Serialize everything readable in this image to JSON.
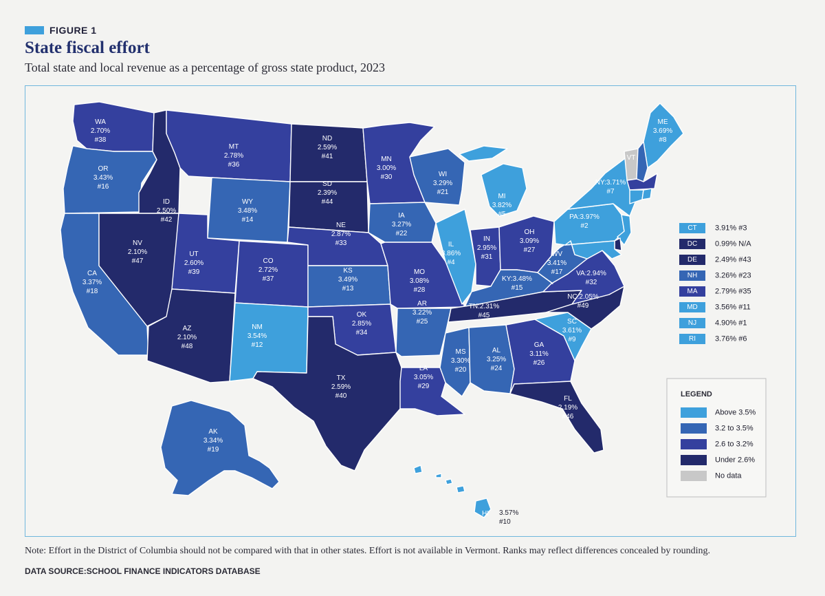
{
  "figure_label": "FIGURE 1",
  "title": "State fiscal effort",
  "subtitle": "Total state and local revenue as a percentage of gross state product, 2023",
  "note": "Note: Effort in the District of Columbia should not be compared with that in other states. Effort is not available in Vermont. Ranks may reflect differences concealed by rounding.",
  "source": "DATA SOURCE:SCHOOL FINANCE INDICATORS DATABASE",
  "colors": {
    "above_3_5": "#3ea0dc",
    "range_3_2_3_5": "#3566b4",
    "range_2_6_3_2": "#34409e",
    "under_2_6": "#232a6b",
    "no_data": "#c8c8c8",
    "accent": "#3ea0dc"
  },
  "legend": {
    "title": "LEGEND",
    "items": [
      {
        "label": "Above 3.5%",
        "cls": "above_3_5"
      },
      {
        "label": "3.2 to 3.5%",
        "cls": "range_3_2_3_5"
      },
      {
        "label": "2.6 to 3.2%",
        "cls": "range_2_6_3_2"
      },
      {
        "label": "Under 2.6%",
        "cls": "under_2_6"
      },
      {
        "label": "No data",
        "cls": "no_data"
      }
    ]
  },
  "small_states": [
    {
      "abbr": "CT",
      "value": "3.91% #3",
      "cls": "above_3_5"
    },
    {
      "abbr": "DC",
      "value": "0.99% N/A",
      "cls": "under_2_6"
    },
    {
      "abbr": "DE",
      "value": "2.49% #43",
      "cls": "under_2_6"
    },
    {
      "abbr": "NH",
      "value": "3.26% #23",
      "cls": "range_3_2_3_5"
    },
    {
      "abbr": "MA",
      "value": "2.79% #35",
      "cls": "range_2_6_3_2"
    },
    {
      "abbr": "MD",
      "value": "3.56% #11",
      "cls": "above_3_5"
    },
    {
      "abbr": "NJ",
      "value": "4.90% #1",
      "cls": "above_3_5"
    },
    {
      "abbr": "RI",
      "value": "3.76% #6",
      "cls": "above_3_5"
    }
  ],
  "states": [
    {
      "id": "WA",
      "cls": "range_2_6_3_2",
      "lines": [
        "WA",
        "2.70%",
        "#38"
      ]
    },
    {
      "id": "OR",
      "cls": "range_3_2_3_5",
      "lines": [
        "OR",
        "3.43%",
        "#16"
      ]
    },
    {
      "id": "CA",
      "cls": "range_3_2_3_5",
      "lines": [
        "CA",
        "3.37%",
        "#18"
      ]
    },
    {
      "id": "ID",
      "cls": "under_2_6",
      "lines": [
        "ID",
        "2.50%",
        "#42"
      ]
    },
    {
      "id": "NV",
      "cls": "under_2_6",
      "lines": [
        "NV",
        "2.10%",
        "#47"
      ]
    },
    {
      "id": "MT",
      "cls": "range_2_6_3_2",
      "lines": [
        "MT",
        "2.78%",
        "#36"
      ]
    },
    {
      "id": "WY",
      "cls": "range_3_2_3_5",
      "lines": [
        "WY",
        "3.48%",
        "#14"
      ]
    },
    {
      "id": "UT",
      "cls": "range_2_6_3_2",
      "lines": [
        "UT",
        "2.60%",
        "#39"
      ]
    },
    {
      "id": "AZ",
      "cls": "under_2_6",
      "lines": [
        "AZ",
        "2.10%",
        "#48"
      ]
    },
    {
      "id": "CO",
      "cls": "range_2_6_3_2",
      "lines": [
        "CO",
        "2.72%",
        "#37"
      ]
    },
    {
      "id": "NM",
      "cls": "above_3_5",
      "lines": [
        "NM",
        "3.54%",
        "#12"
      ]
    },
    {
      "id": "ND",
      "cls": "under_2_6",
      "lines": [
        "ND",
        "2.59%",
        "#41"
      ]
    },
    {
      "id": "SD",
      "cls": "under_2_6",
      "lines": [
        "SD",
        "2.39%",
        "#44"
      ]
    },
    {
      "id": "NE",
      "cls": "range_2_6_3_2",
      "lines": [
        "NE",
        "2.87%",
        "#33"
      ]
    },
    {
      "id": "KS",
      "cls": "range_3_2_3_5",
      "lines": [
        "KS",
        "3.49%",
        "#13"
      ]
    },
    {
      "id": "OK",
      "cls": "range_2_6_3_2",
      "lines": [
        "OK",
        "2.85%",
        "#34"
      ]
    },
    {
      "id": "TX",
      "cls": "under_2_6",
      "lines": [
        "TX",
        "2.59%",
        "#40"
      ]
    },
    {
      "id": "MN",
      "cls": "range_2_6_3_2",
      "lines": [
        "MN",
        "3.00%",
        "#30"
      ]
    },
    {
      "id": "IA",
      "cls": "range_3_2_3_5",
      "lines": [
        "IA",
        "3.27%",
        "#22"
      ]
    },
    {
      "id": "MO",
      "cls": "range_2_6_3_2",
      "lines": [
        "MO",
        "3.08%",
        "#28"
      ]
    },
    {
      "id": "AR",
      "cls": "range_3_2_3_5",
      "lines": [
        "AR",
        "3.22%",
        "#25"
      ]
    },
    {
      "id": "LA",
      "cls": "range_2_6_3_2",
      "lines": [
        "LA",
        "3.05%",
        "#29"
      ]
    },
    {
      "id": "WI",
      "cls": "range_3_2_3_5",
      "lines": [
        "WI",
        "3.29%",
        "#21"
      ]
    },
    {
      "id": "IL",
      "cls": "above_3_5",
      "lines": [
        "IL",
        "3.86%",
        "#4"
      ]
    },
    {
      "id": "MI",
      "cls": "above_3_5",
      "lines": [
        "MI",
        "3.82%",
        "#5"
      ]
    },
    {
      "id": "IN",
      "cls": "range_2_6_3_2",
      "lines": [
        "IN",
        "2.95%",
        "#31"
      ]
    },
    {
      "id": "OH",
      "cls": "range_2_6_3_2",
      "lines": [
        "OH",
        "3.09%",
        "#27"
      ]
    },
    {
      "id": "KY",
      "cls": "range_3_2_3_5",
      "lines": [
        "KY:3.48%",
        "#15"
      ]
    },
    {
      "id": "TN",
      "cls": "under_2_6",
      "lines": [
        "TN:2.31%",
        "#45"
      ]
    },
    {
      "id": "MS",
      "cls": "range_3_2_3_5",
      "lines": [
        "MS",
        "3.30%",
        "#20"
      ]
    },
    {
      "id": "AL",
      "cls": "range_3_2_3_5",
      "lines": [
        "AL",
        "3.25%",
        "#24"
      ]
    },
    {
      "id": "GA",
      "cls": "range_2_6_3_2",
      "lines": [
        "GA",
        "3.11%",
        "#26"
      ]
    },
    {
      "id": "FL",
      "cls": "under_2_6",
      "lines": [
        "FL",
        "2.19%",
        "#46"
      ]
    },
    {
      "id": "SC",
      "cls": "above_3_5",
      "lines": [
        "SC",
        "3.61%",
        "#9"
      ]
    },
    {
      "id": "NC",
      "cls": "under_2_6",
      "lines": [
        "NC:2.05%",
        "#49"
      ]
    },
    {
      "id": "VA",
      "cls": "range_2_6_3_2",
      "lines": [
        "VA:2.94%",
        "#32"
      ]
    },
    {
      "id": "WV",
      "cls": "range_3_2_3_5",
      "lines": [
        "WV",
        "3.41%",
        "#17"
      ]
    },
    {
      "id": "PA",
      "cls": "above_3_5",
      "lines": [
        "PA:3.97%",
        "#2"
      ]
    },
    {
      "id": "NY",
      "cls": "above_3_5",
      "lines": [
        "NY:3.71%",
        "#7"
      ]
    },
    {
      "id": "VT",
      "cls": "no_data",
      "lines": [
        "VT"
      ]
    },
    {
      "id": "ME",
      "cls": "above_3_5",
      "lines": [
        "ME",
        "3.69%",
        "#8"
      ]
    },
    {
      "id": "AK",
      "cls": "range_3_2_3_5",
      "lines": [
        "AK",
        "3.34%",
        "#19"
      ]
    },
    {
      "id": "HI",
      "cls": "above_3_5",
      "lines": [
        "HI"
      ]
    },
    {
      "id": "NH",
      "cls": "range_3_2_3_5",
      "lines": []
    },
    {
      "id": "MA",
      "cls": "range_2_6_3_2",
      "lines": []
    },
    {
      "id": "CT",
      "cls": "above_3_5",
      "lines": []
    },
    {
      "id": "RI",
      "cls": "above_3_5",
      "lines": []
    },
    {
      "id": "NJ",
      "cls": "above_3_5",
      "lines": []
    },
    {
      "id": "DE",
      "cls": "under_2_6",
      "lines": []
    },
    {
      "id": "MD",
      "cls": "above_3_5",
      "lines": []
    }
  ],
  "hi_outside_label": [
    "3.57%",
    "#10"
  ]
}
